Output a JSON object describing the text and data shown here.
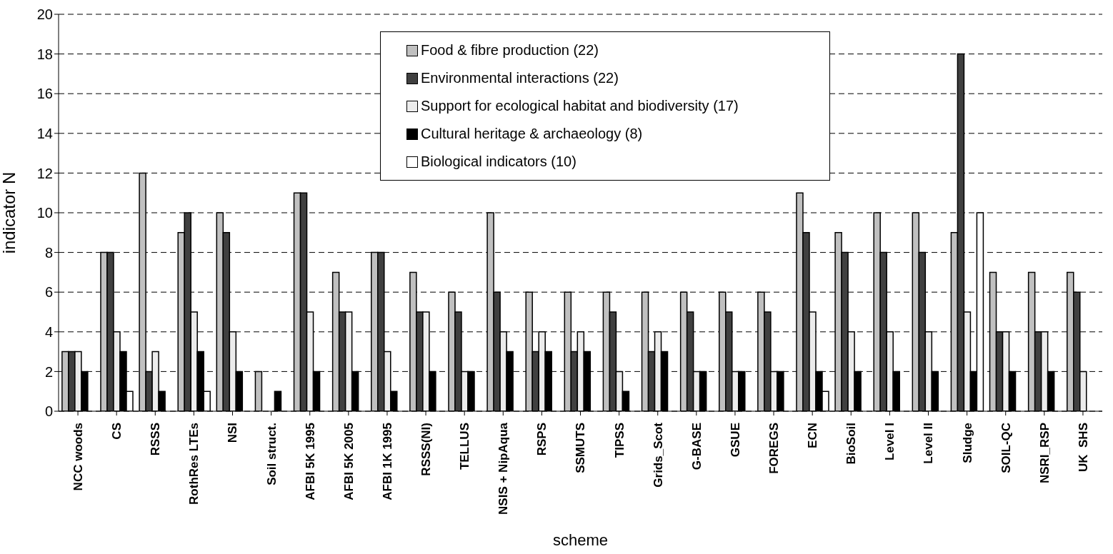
{
  "chart_data": {
    "type": "bar",
    "xlabel": "scheme",
    "ylabel": "indicator N",
    "categories": [
      "NCC woods",
      "CS",
      "RSSS",
      "RothRes LTEs",
      "NSI",
      "Soil struct.",
      "AFBI 5K 1995",
      "AFBI 5K 2005",
      "AFBI 1K 1995",
      "RSSS(NI)",
      "TELLUS",
      "NSIS + NipAqua",
      "RSPS",
      "SSMUTS",
      "TIPSS",
      "Grids_Scot",
      "G-BASE",
      "GSUE",
      "FOREGS",
      "ECN",
      "BioSoil",
      "Level I",
      "Level II",
      "Sludge",
      "SOIL-QC",
      "NSRI_RSP",
      "UK  SHS"
    ],
    "series": [
      {
        "name": "Food & fibre production (22)",
        "color": "#c0c0c0",
        "values": [
          3,
          8,
          12,
          9,
          10,
          2,
          11,
          7,
          8,
          7,
          6,
          10,
          6,
          6,
          6,
          6,
          6,
          6,
          6,
          11,
          9,
          10,
          10,
          9,
          7,
          7,
          7
        ]
      },
      {
        "name": "Environmental interactions (22)",
        "color": "#404040",
        "values": [
          3,
          8,
          2,
          10,
          9,
          null,
          11,
          5,
          8,
          5,
          5,
          6,
          3,
          3,
          5,
          3,
          5,
          5,
          5,
          9,
          8,
          8,
          8,
          18,
          4,
          4,
          6
        ]
      },
      {
        "name": "Support for ecological habitat and biodiversity (17)",
        "color": "#ececec",
        "values": [
          3,
          4,
          3,
          5,
          4,
          null,
          5,
          5,
          3,
          5,
          2,
          4,
          4,
          4,
          2,
          4,
          2,
          2,
          2,
          5,
          4,
          4,
          4,
          5,
          4,
          4,
          2
        ]
      },
      {
        "name": "Cultural heritage & archaeology (8)",
        "color": "#000000",
        "values": [
          2,
          3,
          1,
          3,
          2,
          1,
          2,
          2,
          1,
          2,
          2,
          3,
          3,
          3,
          1,
          3,
          2,
          2,
          2,
          2,
          2,
          2,
          2,
          2,
          2,
          2,
          null
        ]
      },
      {
        "name": "Biological indicators (10)",
        "color": "#ffffff",
        "values": [
          null,
          1,
          null,
          1,
          null,
          null,
          null,
          null,
          null,
          null,
          null,
          null,
          null,
          null,
          null,
          null,
          null,
          null,
          null,
          1,
          null,
          null,
          null,
          10,
          null,
          null,
          null
        ]
      }
    ],
    "ylim": [
      0,
      20
    ],
    "yticks": [
      0,
      2,
      4,
      6,
      8,
      10,
      12,
      14,
      16,
      18,
      20
    ],
    "grid": "y",
    "legend": "top"
  }
}
